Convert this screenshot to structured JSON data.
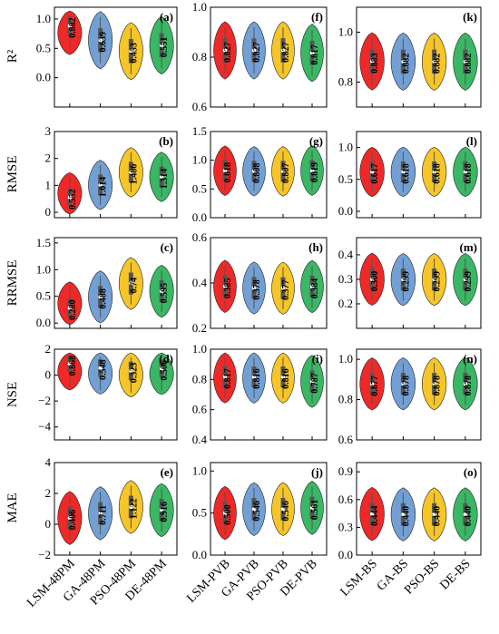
{
  "colors": {
    "red": "#ee1c1c",
    "blue": "#6a9bd3",
    "yellow": "#f5c21b",
    "green": "#2fb35c",
    "box": "#555555",
    "median": "#ffffff",
    "axis": "#000000"
  },
  "chart_data": {
    "type": "violin",
    "rows": [
      "R²",
      "RMSE",
      "RRMSE",
      "NSE",
      "MAE"
    ],
    "columns": [
      {
        "categories": [
          "LSM-48PM",
          "GA-48PM",
          "PSO-48PM",
          "DE-48PM"
        ]
      },
      {
        "categories": [
          "LSM-PVB",
          "GA-PVB",
          "PSO-PVB",
          "DE-PVB"
        ]
      },
      {
        "categories": [
          "LSM-BS",
          "GA-BS",
          "PSO-BS",
          "DE-BS"
        ]
      }
    ],
    "panels": [
      {
        "letter": "(a)",
        "row": 0,
        "col": 0,
        "ylim": [
          -0.5,
          1.2
        ],
        "ticks": [
          "0.0",
          "0.5",
          "1.0"
        ],
        "tick_values": [
          0,
          0.5,
          1.0
        ],
        "values": [
          0.882,
          0.639,
          0.453,
          0.551
        ],
        "labels": [
          "0.882",
          "0.639",
          "0.453",
          "0.551"
        ]
      },
      {
        "letter": "(f)",
        "row": 0,
        "col": 1,
        "ylim": [
          0.6,
          1.0
        ],
        "ticks": [
          "0.6",
          "0.8",
          "1.0"
        ],
        "tick_values": [
          0.6,
          0.8,
          1.0
        ],
        "values": [
          0.827,
          0.827,
          0.827,
          0.817
        ],
        "labels": [
          "0.827",
          "0.827",
          "0.827",
          "0.817"
        ]
      },
      {
        "letter": "(k)",
        "row": 0,
        "col": 2,
        "ylim": [
          0.7,
          1.1
        ],
        "ticks": [
          "0.8",
          "1.0"
        ],
        "tick_values": [
          0.8,
          1.0
        ],
        "values": [
          0.883,
          0.882,
          0.882,
          0.882
        ],
        "labels": [
          "0.883",
          "0.882",
          "0.882",
          "0.882"
        ]
      },
      {
        "letter": "(b)",
        "row": 1,
        "col": 0,
        "ylim": [
          -0.2,
          3.0
        ],
        "ticks": [
          "0",
          "1",
          "2",
          "3"
        ],
        "tick_values": [
          0,
          1,
          2,
          3
        ],
        "values": [
          0.552,
          1.014,
          1.486,
          1.314
        ],
        "labels": [
          "0.552",
          "1.014",
          "1.486",
          "1.314"
        ]
      },
      {
        "letter": "(g)",
        "row": 1,
        "col": 1,
        "ylim": [
          0.0,
          1.5
        ],
        "ticks": [
          "0.0",
          "0.5",
          "1.0",
          "1.5"
        ],
        "tick_values": [
          0,
          0.5,
          1.0,
          1.5
        ],
        "values": [
          0.818,
          0.808,
          0.807,
          0.819
        ],
        "labels": [
          "0.818",
          "0.808",
          "0.807",
          "0.819"
        ]
      },
      {
        "letter": "(l)",
        "row": 1,
        "col": 2,
        "ylim": [
          -0.1,
          1.25
        ],
        "ticks": [
          "0.0",
          "0.5",
          "1.0"
        ],
        "tick_values": [
          0,
          0.5,
          1.0
        ],
        "values": [
          0.617,
          0.618,
          0.618,
          0.618
        ],
        "labels": [
          "0.617",
          "0.618",
          "0.618",
          "0.618"
        ]
      },
      {
        "letter": "(c)",
        "row": 2,
        "col": 0,
        "ylim": [
          -0.1,
          1.6
        ],
        "ticks": [
          "0.0",
          "0.5",
          "1.0",
          "1.5"
        ],
        "tick_values": [
          0,
          0.5,
          1.0,
          1.5
        ],
        "values": [
          0.28,
          0.488,
          0.74,
          0.595
        ],
        "labels": [
          "0.280",
          "0.488",
          "0.74",
          "0.595"
        ]
      },
      {
        "letter": "(h)",
        "row": 2,
        "col": 1,
        "ylim": [
          0.2,
          0.6
        ],
        "ticks": [
          "0.2",
          "0.4",
          "0.6"
        ],
        "tick_values": [
          0.2,
          0.4,
          0.6
        ],
        "values": [
          0.385,
          0.378,
          0.377,
          0.384
        ],
        "labels": [
          "0.385",
          "0.378",
          "0.377",
          "0.384"
        ]
      },
      {
        "letter": "(m)",
        "row": 2,
        "col": 2,
        "ylim": [
          0.1,
          0.47
        ],
        "ticks": [
          "0.2",
          "0.3",
          "0.4"
        ],
        "tick_values": [
          0.2,
          0.3,
          0.4
        ],
        "values": [
          0.3,
          0.299,
          0.299,
          0.299
        ],
        "labels": [
          "0.300",
          "0.299",
          "0.299",
          "0.299"
        ]
      },
      {
        "letter": "(d)",
        "row": 3,
        "col": 0,
        "ylim": [
          -5,
          2
        ],
        "ticks": [
          "−4",
          "−2",
          "0",
          "2"
        ],
        "tick_values": [
          -4,
          -2,
          0,
          2
        ],
        "values": [
          0.868,
          0.548,
          0.323,
          0.506
        ],
        "labels": [
          "0.868",
          "0.548",
          "0.323",
          "0.506"
        ]
      },
      {
        "letter": "(i)",
        "row": 3,
        "col": 1,
        "ylim": [
          0.4,
          1.0
        ],
        "ticks": [
          "0.4",
          "0.6",
          "0.8",
          "1.0"
        ],
        "tick_values": [
          0.4,
          0.6,
          0.8,
          1.0
        ],
        "values": [
          0.817,
          0.816,
          0.816,
          0.787
        ],
        "labels": [
          "0.817",
          "0.816",
          "0.816",
          "0.787"
        ]
      },
      {
        "letter": "(n)",
        "row": 3,
        "col": 2,
        "ylim": [
          0.6,
          1.05
        ],
        "ticks": [
          "0.6",
          "0.8",
          "1.0"
        ],
        "tick_values": [
          0.6,
          0.8,
          1.0
        ],
        "values": [
          0.877,
          0.878,
          0.878,
          0.878
        ],
        "labels": [
          "0.877",
          "0.878",
          "0.878",
          "0.878"
        ]
      },
      {
        "letter": "(e)",
        "row": 4,
        "col": 0,
        "ylim": [
          -2,
          4
        ],
        "ticks": [
          "−2",
          "0",
          "2",
          "4"
        ],
        "tick_values": [
          -2,
          0,
          2,
          4
        ],
        "values": [
          0.406,
          0.711,
          1.122,
          0.916
        ],
        "labels": [
          "0.406",
          "0.711",
          "1.122",
          "0.916"
        ]
      },
      {
        "letter": "(j)",
        "row": 4,
        "col": 1,
        "ylim": [
          0.0,
          1.1
        ],
        "ticks": [
          "0.0",
          "0.5",
          "1.0"
        ],
        "tick_values": [
          0,
          0.5,
          1.0
        ],
        "values": [
          0.5,
          0.546,
          0.546,
          0.561
        ],
        "labels": [
          "0.500",
          "0.546",
          "0.546",
          "0.561"
        ]
      },
      {
        "letter": "(o)",
        "row": 4,
        "col": 2,
        "ylim": [
          0.0,
          1.0
        ],
        "ticks": [
          "0.0",
          "0.3",
          "0.6",
          "0.9"
        ],
        "tick_values": [
          0,
          0.3,
          0.6,
          0.9
        ],
        "values": [
          0.444,
          0.44,
          0.44,
          0.44
        ],
        "labels": [
          "0.444",
          "0.440",
          "0.440",
          "0.440"
        ]
      }
    ]
  }
}
